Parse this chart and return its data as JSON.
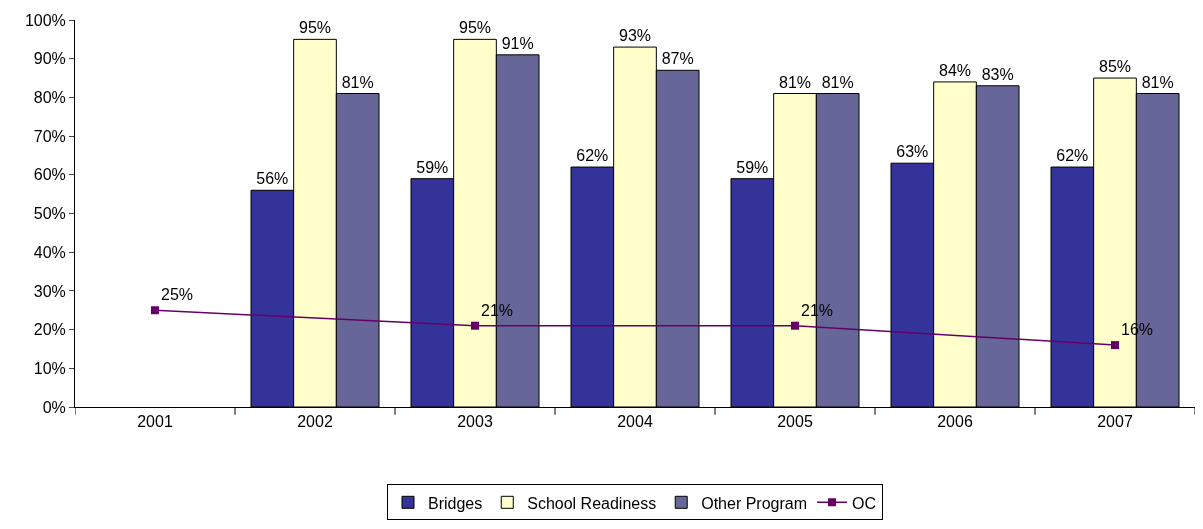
{
  "chart_data": {
    "type": "bar",
    "categories": [
      "2001",
      "2002",
      "2003",
      "2004",
      "2005",
      "2006",
      "2007"
    ],
    "series": [
      {
        "name": "Bridges",
        "color": "#333399",
        "values": [
          null,
          56,
          59,
          62,
          59,
          63,
          62
        ],
        "value_labels": [
          null,
          "56%",
          "59%",
          "62%",
          "59%",
          "63%",
          "62%"
        ]
      },
      {
        "name": "School Readiness",
        "color": "#ffffcc",
        "values": [
          null,
          95,
          95,
          93,
          81,
          84,
          85
        ],
        "value_labels": [
          null,
          "95%",
          "95%",
          "93%",
          "81%",
          "84%",
          "85%"
        ]
      },
      {
        "name": "Other Program",
        "color": "#666699",
        "values": [
          null,
          81,
          91,
          87,
          81,
          83,
          81
        ],
        "value_labels": [
          null,
          "81%",
          "91%",
          "87%",
          "81%",
          "83%",
          "81%"
        ]
      },
      {
        "name": "OC",
        "type": "line",
        "color": "#660066",
        "marker": "square",
        "values": [
          25,
          null,
          21,
          null,
          21,
          null,
          16
        ],
        "value_labels": [
          "25%",
          null,
          "21%",
          null,
          "21%",
          null,
          "16%"
        ]
      }
    ],
    "ylim": [
      0,
      100
    ],
    "yticks": [
      {
        "value": 0,
        "label": "0%"
      },
      {
        "value": 10,
        "label": "10%"
      },
      {
        "value": 20,
        "label": "20%"
      },
      {
        "value": 30,
        "label": "30%"
      },
      {
        "value": 40,
        "label": "40%"
      },
      {
        "value": 50,
        "label": "50%"
      },
      {
        "value": 60,
        "label": "60%"
      },
      {
        "value": 70,
        "label": "70%"
      },
      {
        "value": 80,
        "label": "80%"
      },
      {
        "value": 90,
        "label": "90%"
      },
      {
        "value": 100,
        "label": "100%"
      }
    ],
    "legend": "bottom"
  }
}
